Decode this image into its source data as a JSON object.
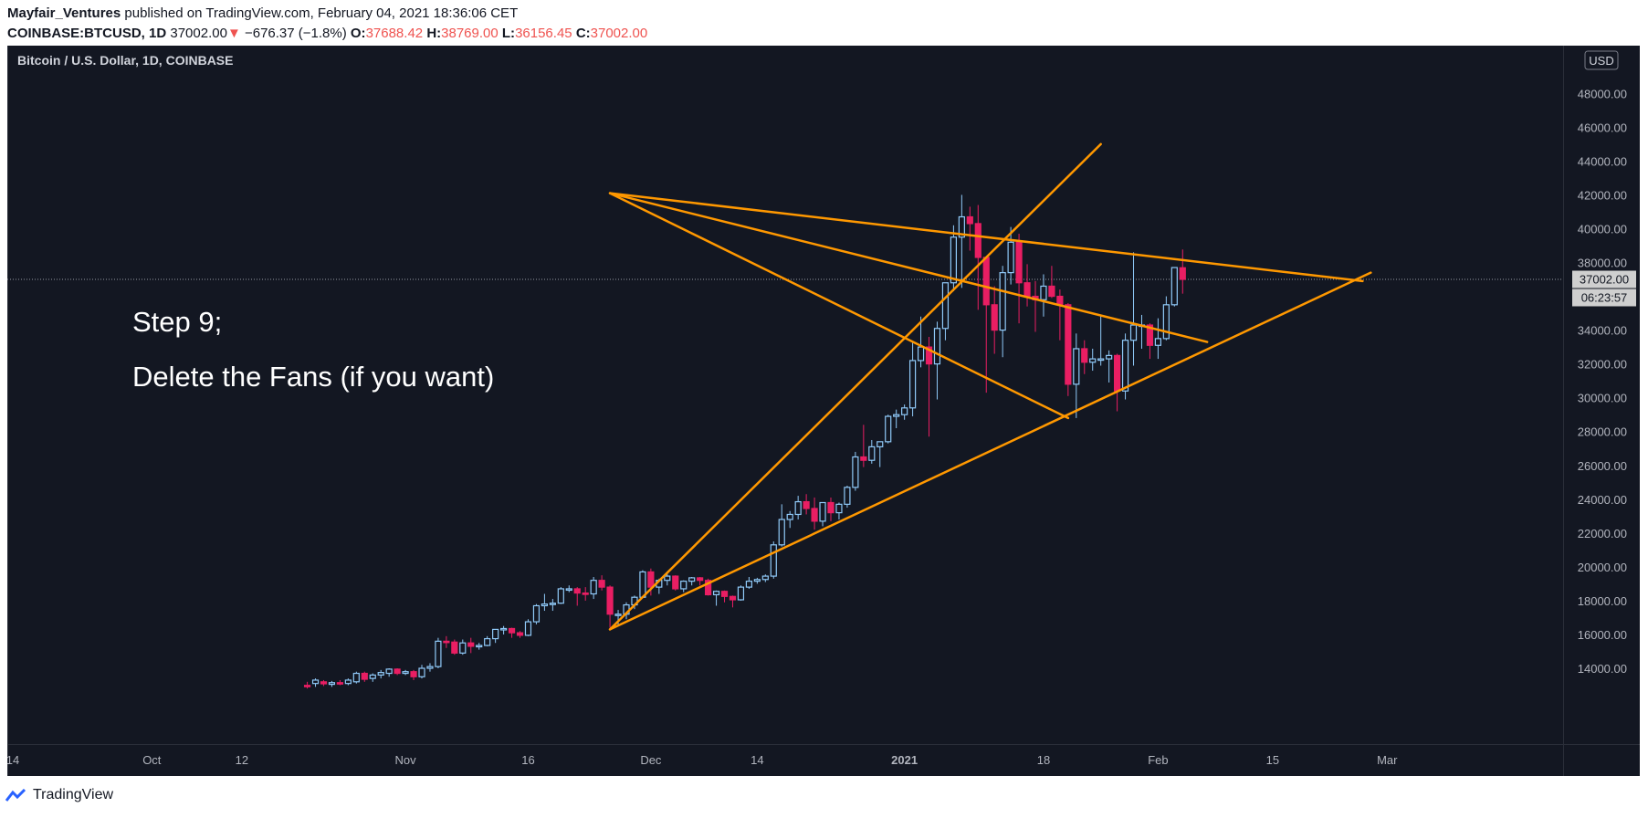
{
  "header": {
    "author": "Mayfair_Ventures",
    "published_text": " published on TradingView.com, February 04, 2021 18:36:06 CET",
    "symbol": "COINBASE:BTCUSD, 1D",
    "last": "37002.00",
    "down_arrow": "▼",
    "change": "−676.37 (−1.8%)",
    "o_label": "O:",
    "o_value": "37688.42",
    "h_label": "H:",
    "h_value": "38769.00",
    "l_label": "L:",
    "l_value": "36156.45",
    "c_label": "C:",
    "c_value": "37002.00"
  },
  "chart_title": "Bitcoin / U.S. Dollar, 1D, COINBASE",
  "annotation": {
    "line1": "Step 9;",
    "line2": "Delete the Fans (if you want)"
  },
  "price_axis": {
    "currency": "USD",
    "price_tag": "37002.00",
    "countdown": "06:23:57"
  },
  "footer": {
    "brand": "TradingView"
  },
  "colors": {
    "background": "#131722",
    "up": "#90caf9",
    "down": "#e91e63",
    "lines": "#ff9800",
    "text": "#b2b5be",
    "tag": "#cfcfcf"
  },
  "chart_data": {
    "type": "candlestick",
    "title": "Bitcoin / U.S. Dollar, 1D, COINBASE",
    "ylabel": "USD",
    "ylim": [
      12800,
      48000
    ],
    "yticks": [
      48000,
      46000,
      44000,
      42000,
      40000,
      38000,
      36000,
      34000,
      32000,
      30000,
      28000,
      26000,
      24000,
      22000,
      20000,
      18000,
      16000,
      14000
    ],
    "ytick_labels": [
      "48000.00",
      "46000.00",
      "44000.00",
      "42000.00",
      "40000.00",
      "38000.00",
      "36000.00",
      "34000.00",
      "32000.00",
      "30000.00",
      "28000.00",
      "26000.00",
      "24000.00",
      "22000.00",
      "20000.00",
      "18000.00",
      "16000.00",
      "14000.00"
    ],
    "xticks": [
      {
        "label": "14",
        "date": "2020-09-14"
      },
      {
        "label": "Oct",
        "date": "2020-10-01"
      },
      {
        "label": "12",
        "date": "2020-10-12"
      },
      {
        "label": "Nov",
        "date": "2020-11-01"
      },
      {
        "label": "16",
        "date": "2020-11-16"
      },
      {
        "label": "Dec",
        "date": "2020-12-01"
      },
      {
        "label": "14",
        "date": "2020-12-14"
      },
      {
        "label": "2021",
        "date": "2021-01-01",
        "bold": true
      },
      {
        "label": "18",
        "date": "2021-01-18"
      },
      {
        "label": "Feb",
        "date": "2021-02-01"
      },
      {
        "label": "15",
        "date": "2021-02-15"
      },
      {
        "label": "Mar",
        "date": "2021-03-01"
      }
    ],
    "last_price": 37002.0,
    "candles": [
      {
        "d": "2020-10-20",
        "o": 12990,
        "h": 13200,
        "l": 12800,
        "c": 12980
      },
      {
        "d": "2020-10-21",
        "o": 13100,
        "h": 13400,
        "l": 12900,
        "c": 13300
      },
      {
        "d": "2020-10-22",
        "o": 13200,
        "h": 13300,
        "l": 12950,
        "c": 13080
      },
      {
        "d": "2020-10-23",
        "o": 13050,
        "h": 13250,
        "l": 12900,
        "c": 13150
      },
      {
        "d": "2020-10-24",
        "o": 13150,
        "h": 13300,
        "l": 13000,
        "c": 13100
      },
      {
        "d": "2020-10-25",
        "o": 13100,
        "h": 13400,
        "l": 13000,
        "c": 13300
      },
      {
        "d": "2020-10-26",
        "o": 13200,
        "h": 13800,
        "l": 13100,
        "c": 13700
      },
      {
        "d": "2020-10-27",
        "o": 13700,
        "h": 13800,
        "l": 13200,
        "c": 13350
      },
      {
        "d": "2020-10-28",
        "o": 13400,
        "h": 13700,
        "l": 13200,
        "c": 13600
      },
      {
        "d": "2020-10-29",
        "o": 13600,
        "h": 13900,
        "l": 13400,
        "c": 13750
      },
      {
        "d": "2020-10-30",
        "o": 13700,
        "h": 14000,
        "l": 13500,
        "c": 13950
      },
      {
        "d": "2020-10-31",
        "o": 13950,
        "h": 14000,
        "l": 13600,
        "c": 13700
      },
      {
        "d": "2020-11-01",
        "o": 13700,
        "h": 13900,
        "l": 13600,
        "c": 13800
      },
      {
        "d": "2020-11-02",
        "o": 13800,
        "h": 13900,
        "l": 13300,
        "c": 13500
      },
      {
        "d": "2020-11-03",
        "o": 13500,
        "h": 14200,
        "l": 13400,
        "c": 14000
      },
      {
        "d": "2020-11-04",
        "o": 14000,
        "h": 14300,
        "l": 13800,
        "c": 14100
      },
      {
        "d": "2020-11-05",
        "o": 14100,
        "h": 15800,
        "l": 14000,
        "c": 15600
      },
      {
        "d": "2020-11-06",
        "o": 15600,
        "h": 15900,
        "l": 15200,
        "c": 15550
      },
      {
        "d": "2020-11-07",
        "o": 15550,
        "h": 15700,
        "l": 14800,
        "c": 14900
      },
      {
        "d": "2020-11-08",
        "o": 14900,
        "h": 15700,
        "l": 14800,
        "c": 15500
      },
      {
        "d": "2020-11-09",
        "o": 15500,
        "h": 15800,
        "l": 14900,
        "c": 15300
      },
      {
        "d": "2020-11-10",
        "o": 15300,
        "h": 15500,
        "l": 15100,
        "c": 15350
      },
      {
        "d": "2020-11-11",
        "o": 15350,
        "h": 15900,
        "l": 15300,
        "c": 15750
      },
      {
        "d": "2020-11-12",
        "o": 15750,
        "h": 16300,
        "l": 15500,
        "c": 16300
      },
      {
        "d": "2020-11-13",
        "o": 16300,
        "h": 16500,
        "l": 16000,
        "c": 16350
      },
      {
        "d": "2020-11-14",
        "o": 16350,
        "h": 16400,
        "l": 15800,
        "c": 16100
      },
      {
        "d": "2020-11-15",
        "o": 16100,
        "h": 16200,
        "l": 15800,
        "c": 15950
      },
      {
        "d": "2020-11-16",
        "o": 15950,
        "h": 16900,
        "l": 15900,
        "c": 16750
      },
      {
        "d": "2020-11-17",
        "o": 16750,
        "h": 17800,
        "l": 16600,
        "c": 17700
      },
      {
        "d": "2020-11-18",
        "o": 17700,
        "h": 18400,
        "l": 17400,
        "c": 17800
      },
      {
        "d": "2020-11-19",
        "o": 17800,
        "h": 18100,
        "l": 17400,
        "c": 17850
      },
      {
        "d": "2020-11-20",
        "o": 17850,
        "h": 18800,
        "l": 17800,
        "c": 18700
      },
      {
        "d": "2020-11-21",
        "o": 18700,
        "h": 18900,
        "l": 18500,
        "c": 18700
      },
      {
        "d": "2020-11-22",
        "o": 18700,
        "h": 18800,
        "l": 17700,
        "c": 18450
      },
      {
        "d": "2020-11-23",
        "o": 18450,
        "h": 18800,
        "l": 18000,
        "c": 18400
      },
      {
        "d": "2020-11-24",
        "o": 18400,
        "h": 19400,
        "l": 18100,
        "c": 19200
      },
      {
        "d": "2020-11-25",
        "o": 19200,
        "h": 19500,
        "l": 18600,
        "c": 18800
      },
      {
        "d": "2020-11-26",
        "o": 18800,
        "h": 18900,
        "l": 16400,
        "c": 17200
      },
      {
        "d": "2020-11-27",
        "o": 17200,
        "h": 17450,
        "l": 16500,
        "c": 17200
      },
      {
        "d": "2020-11-28",
        "o": 17200,
        "h": 17900,
        "l": 16900,
        "c": 17750
      },
      {
        "d": "2020-11-29",
        "o": 17750,
        "h": 18300,
        "l": 17500,
        "c": 18200
      },
      {
        "d": "2020-11-30",
        "o": 18200,
        "h": 19800,
        "l": 18200,
        "c": 19700
      },
      {
        "d": "2020-12-01",
        "o": 19700,
        "h": 19900,
        "l": 18300,
        "c": 18800
      },
      {
        "d": "2020-12-02",
        "o": 18800,
        "h": 19300,
        "l": 18400,
        "c": 19200
      },
      {
        "d": "2020-12-03",
        "o": 19200,
        "h": 19600,
        "l": 18900,
        "c": 19450
      },
      {
        "d": "2020-12-04",
        "o": 19450,
        "h": 19500,
        "l": 18600,
        "c": 18700
      },
      {
        "d": "2020-12-05",
        "o": 18700,
        "h": 19200,
        "l": 18500,
        "c": 19150
      },
      {
        "d": "2020-12-06",
        "o": 19150,
        "h": 19400,
        "l": 18900,
        "c": 19350
      },
      {
        "d": "2020-12-07",
        "o": 19350,
        "h": 19400,
        "l": 18900,
        "c": 19200
      },
      {
        "d": "2020-12-08",
        "o": 19200,
        "h": 19300,
        "l": 18300,
        "c": 18350
      },
      {
        "d": "2020-12-09",
        "o": 18350,
        "h": 18600,
        "l": 17700,
        "c": 18550
      },
      {
        "d": "2020-12-10",
        "o": 18550,
        "h": 18600,
        "l": 17900,
        "c": 18250
      },
      {
        "d": "2020-12-11",
        "o": 18250,
        "h": 18300,
        "l": 17600,
        "c": 18050
      },
      {
        "d": "2020-12-12",
        "o": 18050,
        "h": 18900,
        "l": 18000,
        "c": 18800
      },
      {
        "d": "2020-12-13",
        "o": 18800,
        "h": 19400,
        "l": 18700,
        "c": 19150
      },
      {
        "d": "2020-12-14",
        "o": 19150,
        "h": 19350,
        "l": 19000,
        "c": 19250
      },
      {
        "d": "2020-12-15",
        "o": 19250,
        "h": 19550,
        "l": 19100,
        "c": 19450
      },
      {
        "d": "2020-12-16",
        "o": 19450,
        "h": 21500,
        "l": 19300,
        "c": 21300
      },
      {
        "d": "2020-12-17",
        "o": 21300,
        "h": 23700,
        "l": 21200,
        "c": 22800
      },
      {
        "d": "2020-12-18",
        "o": 22800,
        "h": 23300,
        "l": 22300,
        "c": 23100
      },
      {
        "d": "2020-12-19",
        "o": 23100,
        "h": 24200,
        "l": 22800,
        "c": 23850
      },
      {
        "d": "2020-12-20",
        "o": 23850,
        "h": 24300,
        "l": 23100,
        "c": 23450
      },
      {
        "d": "2020-12-21",
        "o": 23450,
        "h": 24100,
        "l": 22200,
        "c": 22700
      },
      {
        "d": "2020-12-22",
        "o": 22700,
        "h": 23800,
        "l": 22400,
        "c": 23800
      },
      {
        "d": "2020-12-23",
        "o": 23800,
        "h": 24100,
        "l": 22700,
        "c": 23200
      },
      {
        "d": "2020-12-24",
        "o": 23200,
        "h": 23800,
        "l": 22800,
        "c": 23700
      },
      {
        "d": "2020-12-25",
        "o": 23700,
        "h": 24800,
        "l": 23500,
        "c": 24700
      },
      {
        "d": "2020-12-26",
        "o": 24700,
        "h": 26800,
        "l": 24500,
        "c": 26500
      },
      {
        "d": "2020-12-27",
        "o": 26500,
        "h": 28400,
        "l": 25900,
        "c": 26300
      },
      {
        "d": "2020-12-28",
        "o": 26300,
        "h": 27500,
        "l": 26100,
        "c": 27100
      },
      {
        "d": "2020-12-29",
        "o": 27100,
        "h": 27400,
        "l": 25900,
        "c": 27400
      },
      {
        "d": "2020-12-30",
        "o": 27400,
        "h": 29000,
        "l": 27300,
        "c": 28900
      },
      {
        "d": "2020-12-31",
        "o": 28900,
        "h": 29300,
        "l": 28200,
        "c": 29000
      },
      {
        "d": "2021-01-01",
        "o": 29000,
        "h": 29600,
        "l": 28700,
        "c": 29400
      },
      {
        "d": "2021-01-02",
        "o": 29400,
        "h": 33300,
        "l": 28900,
        "c": 32200
      },
      {
        "d": "2021-01-03",
        "o": 32200,
        "h": 34800,
        "l": 31800,
        "c": 33000
      },
      {
        "d": "2021-01-04",
        "o": 33000,
        "h": 33600,
        "l": 27700,
        "c": 32000
      },
      {
        "d": "2021-01-05",
        "o": 32000,
        "h": 34500,
        "l": 29900,
        "c": 34100
      },
      {
        "d": "2021-01-06",
        "o": 34100,
        "h": 36800,
        "l": 33400,
        "c": 36800
      },
      {
        "d": "2021-01-07",
        "o": 36800,
        "h": 40200,
        "l": 36300,
        "c": 39500
      },
      {
        "d": "2021-01-08",
        "o": 39500,
        "h": 42000,
        "l": 36500,
        "c": 40700
      },
      {
        "d": "2021-01-09",
        "o": 40700,
        "h": 41300,
        "l": 38700,
        "c": 40300
      },
      {
        "d": "2021-01-10",
        "o": 40300,
        "h": 41400,
        "l": 35200,
        "c": 38300
      },
      {
        "d": "2021-01-11",
        "o": 38300,
        "h": 38300,
        "l": 30300,
        "c": 35500
      },
      {
        "d": "2021-01-12",
        "o": 35500,
        "h": 36600,
        "l": 32600,
        "c": 34000
      },
      {
        "d": "2021-01-13",
        "o": 34000,
        "h": 37800,
        "l": 32400,
        "c": 37400
      },
      {
        "d": "2021-01-14",
        "o": 37400,
        "h": 40100,
        "l": 36700,
        "c": 39200
      },
      {
        "d": "2021-01-15",
        "o": 39200,
        "h": 39700,
        "l": 34400,
        "c": 36800
      },
      {
        "d": "2021-01-16",
        "o": 36800,
        "h": 37900,
        "l": 35400,
        "c": 36000
      },
      {
        "d": "2021-01-17",
        "o": 36000,
        "h": 36900,
        "l": 33900,
        "c": 35800
      },
      {
        "d": "2021-01-18",
        "o": 35800,
        "h": 37300,
        "l": 34800,
        "c": 36600
      },
      {
        "d": "2021-01-19",
        "o": 36600,
        "h": 37800,
        "l": 35900,
        "c": 36000
      },
      {
        "d": "2021-01-20",
        "o": 36000,
        "h": 36400,
        "l": 33400,
        "c": 35500
      },
      {
        "d": "2021-01-21",
        "o": 35500,
        "h": 35600,
        "l": 30100,
        "c": 30800
      },
      {
        "d": "2021-01-22",
        "o": 30800,
        "h": 33800,
        "l": 28800,
        "c": 32900
      },
      {
        "d": "2021-01-23",
        "o": 32900,
        "h": 33400,
        "l": 31400,
        "c": 32100
      },
      {
        "d": "2021-01-24",
        "o": 32100,
        "h": 32900,
        "l": 31600,
        "c": 32300
      },
      {
        "d": "2021-01-25",
        "o": 32300,
        "h": 34900,
        "l": 31900,
        "c": 32300
      },
      {
        "d": "2021-01-26",
        "o": 32300,
        "h": 32800,
        "l": 30900,
        "c": 32500
      },
      {
        "d": "2021-01-27",
        "o": 32500,
        "h": 32600,
        "l": 29200,
        "c": 30400
      },
      {
        "d": "2021-01-28",
        "o": 30400,
        "h": 33800,
        "l": 29900,
        "c": 33400
      },
      {
        "d": "2021-01-29",
        "o": 33400,
        "h": 38600,
        "l": 31900,
        "c": 34300
      },
      {
        "d": "2021-01-30",
        "o": 34300,
        "h": 34900,
        "l": 32900,
        "c": 34300
      },
      {
        "d": "2021-01-31",
        "o": 34300,
        "h": 34400,
        "l": 32300,
        "c": 33100
      },
      {
        "d": "2021-02-01",
        "o": 33100,
        "h": 34700,
        "l": 32300,
        "c": 33500
      },
      {
        "d": "2021-02-02",
        "o": 33500,
        "h": 36000,
        "l": 33400,
        "c": 35500
      },
      {
        "d": "2021-02-03",
        "o": 35500,
        "h": 37700,
        "l": 35400,
        "c": 37700
      },
      {
        "d": "2021-02-04",
        "o": 37688.42,
        "h": 38769.0,
        "l": 36156.45,
        "c": 37002.0
      }
    ],
    "trendlines": [
      {
        "from": {
          "d": "2020-11-26",
          "p": 42100
        },
        "to": {
          "d": "2021-02-26",
          "p": 36900
        }
      },
      {
        "from": {
          "d": "2020-11-26",
          "p": 42100
        },
        "to": {
          "d": "2021-02-07",
          "p": 33300
        }
      },
      {
        "from": {
          "d": "2020-11-26",
          "p": 42100
        },
        "to": {
          "d": "2021-01-21",
          "p": 28800
        }
      },
      {
        "from": {
          "d": "2020-11-26",
          "p": 16300
        },
        "to": {
          "d": "2021-01-25",
          "p": 45000
        }
      },
      {
        "from": {
          "d": "2020-11-26",
          "p": 16300
        },
        "to": {
          "d": "2021-02-27",
          "p": 37400
        }
      }
    ]
  }
}
